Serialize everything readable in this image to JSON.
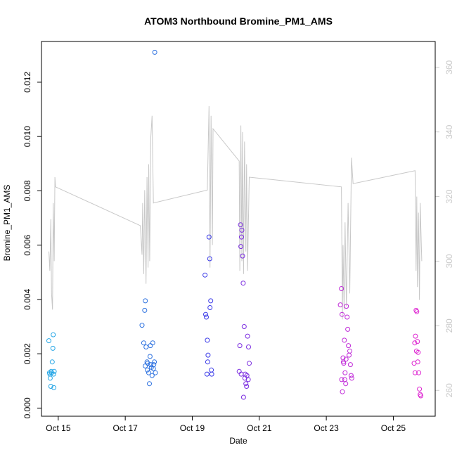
{
  "chart_data": {
    "type": "scatter",
    "title": "ATOM3 Northbound Bromine_PM1_AMS",
    "xlabel": "Date",
    "ylabel": "Bromine_PM1_AMS",
    "xlim": [
      14.5,
      26.25
    ],
    "ylim": [
      -0.0003,
      0.0135
    ],
    "y2lim": [
      252,
      368
    ],
    "x_ticks": [
      {
        "value": 15,
        "label": "Oct 15"
      },
      {
        "value": 17,
        "label": "Oct 17"
      },
      {
        "value": 19,
        "label": "Oct 19"
      },
      {
        "value": 21,
        "label": "Oct 21"
      },
      {
        "value": 23,
        "label": "Oct 23"
      },
      {
        "value": 25,
        "label": "Oct 25"
      }
    ],
    "y_ticks": [
      {
        "value": 0.0,
        "label": "0.000"
      },
      {
        "value": 0.002,
        "label": "0.002"
      },
      {
        "value": 0.004,
        "label": "0.004"
      },
      {
        "value": 0.006,
        "label": "0.006"
      },
      {
        "value": 0.008,
        "label": "0.008"
      },
      {
        "value": 0.01,
        "label": "0.010"
      },
      {
        "value": 0.012,
        "label": "0.012"
      }
    ],
    "y2_ticks": [
      {
        "value": 260,
        "label": "260"
      },
      {
        "value": 280,
        "label": "280"
      },
      {
        "value": 300,
        "label": "300"
      },
      {
        "value": 320,
        "label": "320"
      },
      {
        "value": 340,
        "label": "340"
      },
      {
        "value": 360,
        "label": "360"
      }
    ],
    "line_color": "#c8c8c8",
    "secondary_line": [
      [
        14.72,
        303
      ],
      [
        14.75,
        297
      ],
      [
        14.78,
        313
      ],
      [
        14.8,
        290
      ],
      [
        14.83,
        285
      ],
      [
        14.85,
        318
      ],
      [
        14.88,
        300
      ],
      [
        14.9,
        326
      ],
      [
        14.92,
        323
      ],
      [
        17.45,
        311
      ],
      [
        17.5,
        302
      ],
      [
        17.52,
        318
      ],
      [
        17.55,
        296
      ],
      [
        17.58,
        322
      ],
      [
        17.62,
        293
      ],
      [
        17.65,
        326
      ],
      [
        17.68,
        298
      ],
      [
        17.7,
        330
      ],
      [
        17.73,
        300
      ],
      [
        17.76,
        338
      ],
      [
        17.8,
        345
      ],
      [
        17.84,
        318
      ],
      [
        19.45,
        322
      ],
      [
        19.5,
        348
      ],
      [
        19.53,
        298
      ],
      [
        19.56,
        345
      ],
      [
        19.6,
        305
      ],
      [
        19.62,
        341
      ],
      [
        20.4,
        331
      ],
      [
        20.42,
        297
      ],
      [
        20.45,
        342
      ],
      [
        20.48,
        300
      ],
      [
        20.5,
        340
      ],
      [
        20.53,
        296
      ],
      [
        20.56,
        337
      ],
      [
        20.6,
        303
      ],
      [
        20.62,
        330
      ],
      [
        20.65,
        297
      ],
      [
        20.7,
        326
      ],
      [
        23.45,
        323
      ],
      [
        23.48,
        282
      ],
      [
        23.5,
        305
      ],
      [
        23.53,
        285
      ],
      [
        23.56,
        312
      ],
      [
        23.6,
        286
      ],
      [
        23.65,
        318
      ],
      [
        23.7,
        290
      ],
      [
        23.75,
        332
      ],
      [
        23.8,
        324
      ],
      [
        25.65,
        328
      ],
      [
        25.68,
        297
      ],
      [
        25.7,
        320
      ],
      [
        25.72,
        292
      ],
      [
        25.75,
        315
      ],
      [
        25.78,
        288
      ],
      [
        25.8,
        318
      ],
      [
        25.85,
        300
      ]
    ],
    "series": [
      {
        "name": "Oct 15",
        "color": "#27a7e6",
        "points": [
          [
            14.72,
            0.00248
          ],
          [
            14.74,
            0.0013
          ],
          [
            14.75,
            0.00125
          ],
          [
            14.76,
            0.0011
          ],
          [
            14.78,
            0.0008
          ],
          [
            14.79,
            0.00135
          ],
          [
            14.8,
            0.0013
          ],
          [
            14.82,
            0.0017
          ],
          [
            14.84,
            0.0022
          ],
          [
            14.85,
            0.0027
          ],
          [
            14.86,
            0.00125
          ],
          [
            14.87,
            0.00075
          ],
          [
            14.88,
            0.00135
          ]
        ]
      },
      {
        "name": "Oct 17",
        "color": "#2e72e0",
        "points": [
          [
            17.5,
            0.00305
          ],
          [
            17.55,
            0.0024
          ],
          [
            17.58,
            0.0036
          ],
          [
            17.6,
            0.00395
          ],
          [
            17.62,
            0.00225
          ],
          [
            17.65,
            0.0017
          ],
          [
            17.67,
            0.00165
          ],
          [
            17.7,
            0.0013
          ],
          [
            17.72,
            0.0009
          ],
          [
            17.74,
            0.0019
          ],
          [
            17.76,
            0.0016
          ],
          [
            17.78,
            0.0015
          ],
          [
            17.8,
            0.0012
          ],
          [
            17.82,
            0.0024
          ],
          [
            17.85,
            0.0016
          ],
          [
            17.87,
            0.0017
          ],
          [
            17.9,
            0.0013
          ],
          [
            17.88,
            0.0131
          ],
          [
            17.6,
            0.00155
          ],
          [
            17.66,
            0.0014
          ],
          [
            17.75,
            0.0023
          ],
          [
            17.84,
            0.00145
          ]
        ]
      },
      {
        "name": "Oct 19",
        "color": "#3a3ae8",
        "points": [
          [
            19.38,
            0.0049
          ],
          [
            19.4,
            0.00345
          ],
          [
            19.42,
            0.00335
          ],
          [
            19.45,
            0.0025
          ],
          [
            19.47,
            0.00195
          ],
          [
            19.5,
            0.0063
          ],
          [
            19.52,
            0.0055
          ],
          [
            19.53,
            0.0037
          ],
          [
            19.55,
            0.00395
          ],
          [
            19.57,
            0.0014
          ],
          [
            19.58,
            0.00125
          ],
          [
            19.46,
            0.0017
          ],
          [
            19.44,
            0.00125
          ]
        ]
      },
      {
        "name": "Oct 21",
        "color": "#7a2be0",
        "points": [
          [
            20.4,
            0.00135
          ],
          [
            20.42,
            0.0023
          ],
          [
            20.44,
            0.00675
          ],
          [
            20.45,
            0.00595
          ],
          [
            20.47,
            0.0063
          ],
          [
            20.48,
            0.00655
          ],
          [
            20.5,
            0.0056
          ],
          [
            20.52,
            0.0046
          ],
          [
            20.55,
            0.003
          ],
          [
            20.57,
            0.0011
          ],
          [
            20.6,
            0.0009
          ],
          [
            20.62,
            0.0008
          ],
          [
            20.65,
            0.00265
          ],
          [
            20.68,
            0.00225
          ],
          [
            20.7,
            0.00165
          ],
          [
            20.46,
            0.00125
          ],
          [
            20.53,
            0.0004
          ],
          [
            20.58,
            0.00125
          ],
          [
            20.63,
            0.0012
          ],
          [
            20.67,
            0.00105
          ]
        ]
      },
      {
        "name": "Oct 23",
        "color": "#c02ad8",
        "points": [
          [
            23.42,
            0.0038
          ],
          [
            23.45,
            0.0044
          ],
          [
            23.47,
            0.00345
          ],
          [
            23.5,
            0.00185
          ],
          [
            23.52,
            0.00165
          ],
          [
            23.54,
            0.0025
          ],
          [
            23.56,
            0.0013
          ],
          [
            23.58,
            0.0009
          ],
          [
            23.6,
            0.00375
          ],
          [
            23.62,
            0.00335
          ],
          [
            23.64,
            0.0029
          ],
          [
            23.66,
            0.0023
          ],
          [
            23.68,
            0.00195
          ],
          [
            23.7,
            0.0021
          ],
          [
            23.72,
            0.0016
          ],
          [
            23.74,
            0.0012
          ],
          [
            23.76,
            0.0011
          ],
          [
            23.46,
            0.00105
          ],
          [
            23.48,
            0.0006
          ],
          [
            23.51,
            0.0017
          ],
          [
            23.55,
            0.00105
          ],
          [
            23.59,
            0.0018
          ]
        ]
      },
      {
        "name": "Oct 25",
        "color": "#dd22d0",
        "points": [
          [
            25.62,
            0.00165
          ],
          [
            25.64,
            0.0024
          ],
          [
            25.66,
            0.00265
          ],
          [
            25.68,
            0.0036
          ],
          [
            25.7,
            0.00355
          ],
          [
            25.72,
            0.00245
          ],
          [
            25.74,
            0.00205
          ],
          [
            25.76,
            0.0013
          ],
          [
            25.78,
            0.0007
          ],
          [
            25.8,
            0.0005
          ],
          [
            25.82,
            0.00045
          ],
          [
            25.65,
            0.0013
          ],
          [
            25.69,
            0.0021
          ],
          [
            25.73,
            0.0017
          ]
        ]
      }
    ]
  }
}
